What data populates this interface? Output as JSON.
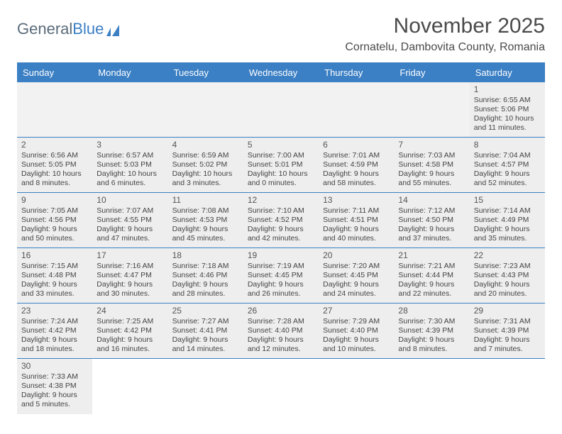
{
  "logo": {
    "text1": "General",
    "text2": "Blue"
  },
  "title": "November 2025",
  "location": "Cornatelu, Dambovita County, Romania",
  "colors": {
    "header_bg": "#3b7fc4",
    "header_text": "#ffffff",
    "cell_bg": "#eeeeee",
    "empty_bg": "#f2f2f2",
    "border": "#3b7fc4",
    "title_color": "#4a4a4a",
    "body_text": "#444444"
  },
  "weekdays": [
    "Sunday",
    "Monday",
    "Tuesday",
    "Wednesday",
    "Thursday",
    "Friday",
    "Saturday"
  ],
  "weeks": [
    [
      null,
      null,
      null,
      null,
      null,
      null,
      {
        "n": "1",
        "sunrise": "6:55 AM",
        "sunset": "5:06 PM",
        "daylight": "10 hours and 11 minutes."
      }
    ],
    [
      {
        "n": "2",
        "sunrise": "6:56 AM",
        "sunset": "5:05 PM",
        "daylight": "10 hours and 8 minutes."
      },
      {
        "n": "3",
        "sunrise": "6:57 AM",
        "sunset": "5:03 PM",
        "daylight": "10 hours and 6 minutes."
      },
      {
        "n": "4",
        "sunrise": "6:59 AM",
        "sunset": "5:02 PM",
        "daylight": "10 hours and 3 minutes."
      },
      {
        "n": "5",
        "sunrise": "7:00 AM",
        "sunset": "5:01 PM",
        "daylight": "10 hours and 0 minutes."
      },
      {
        "n": "6",
        "sunrise": "7:01 AM",
        "sunset": "4:59 PM",
        "daylight": "9 hours and 58 minutes."
      },
      {
        "n": "7",
        "sunrise": "7:03 AM",
        "sunset": "4:58 PM",
        "daylight": "9 hours and 55 minutes."
      },
      {
        "n": "8",
        "sunrise": "7:04 AM",
        "sunset": "4:57 PM",
        "daylight": "9 hours and 52 minutes."
      }
    ],
    [
      {
        "n": "9",
        "sunrise": "7:05 AM",
        "sunset": "4:56 PM",
        "daylight": "9 hours and 50 minutes."
      },
      {
        "n": "10",
        "sunrise": "7:07 AM",
        "sunset": "4:55 PM",
        "daylight": "9 hours and 47 minutes."
      },
      {
        "n": "11",
        "sunrise": "7:08 AM",
        "sunset": "4:53 PM",
        "daylight": "9 hours and 45 minutes."
      },
      {
        "n": "12",
        "sunrise": "7:10 AM",
        "sunset": "4:52 PM",
        "daylight": "9 hours and 42 minutes."
      },
      {
        "n": "13",
        "sunrise": "7:11 AM",
        "sunset": "4:51 PM",
        "daylight": "9 hours and 40 minutes."
      },
      {
        "n": "14",
        "sunrise": "7:12 AM",
        "sunset": "4:50 PM",
        "daylight": "9 hours and 37 minutes."
      },
      {
        "n": "15",
        "sunrise": "7:14 AM",
        "sunset": "4:49 PM",
        "daylight": "9 hours and 35 minutes."
      }
    ],
    [
      {
        "n": "16",
        "sunrise": "7:15 AM",
        "sunset": "4:48 PM",
        "daylight": "9 hours and 33 minutes."
      },
      {
        "n": "17",
        "sunrise": "7:16 AM",
        "sunset": "4:47 PM",
        "daylight": "9 hours and 30 minutes."
      },
      {
        "n": "18",
        "sunrise": "7:18 AM",
        "sunset": "4:46 PM",
        "daylight": "9 hours and 28 minutes."
      },
      {
        "n": "19",
        "sunrise": "7:19 AM",
        "sunset": "4:45 PM",
        "daylight": "9 hours and 26 minutes."
      },
      {
        "n": "20",
        "sunrise": "7:20 AM",
        "sunset": "4:45 PM",
        "daylight": "9 hours and 24 minutes."
      },
      {
        "n": "21",
        "sunrise": "7:21 AM",
        "sunset": "4:44 PM",
        "daylight": "9 hours and 22 minutes."
      },
      {
        "n": "22",
        "sunrise": "7:23 AM",
        "sunset": "4:43 PM",
        "daylight": "9 hours and 20 minutes."
      }
    ],
    [
      {
        "n": "23",
        "sunrise": "7:24 AM",
        "sunset": "4:42 PM",
        "daylight": "9 hours and 18 minutes."
      },
      {
        "n": "24",
        "sunrise": "7:25 AM",
        "sunset": "4:42 PM",
        "daylight": "9 hours and 16 minutes."
      },
      {
        "n": "25",
        "sunrise": "7:27 AM",
        "sunset": "4:41 PM",
        "daylight": "9 hours and 14 minutes."
      },
      {
        "n": "26",
        "sunrise": "7:28 AM",
        "sunset": "4:40 PM",
        "daylight": "9 hours and 12 minutes."
      },
      {
        "n": "27",
        "sunrise": "7:29 AM",
        "sunset": "4:40 PM",
        "daylight": "9 hours and 10 minutes."
      },
      {
        "n": "28",
        "sunrise": "7:30 AM",
        "sunset": "4:39 PM",
        "daylight": "9 hours and 8 minutes."
      },
      {
        "n": "29",
        "sunrise": "7:31 AM",
        "sunset": "4:39 PM",
        "daylight": "9 hours and 7 minutes."
      }
    ],
    [
      {
        "n": "30",
        "sunrise": "7:33 AM",
        "sunset": "4:38 PM",
        "daylight": "9 hours and 5 minutes."
      },
      null,
      null,
      null,
      null,
      null,
      null
    ]
  ],
  "labels": {
    "sunrise": "Sunrise:",
    "sunset": "Sunset:",
    "daylight": "Daylight:"
  }
}
